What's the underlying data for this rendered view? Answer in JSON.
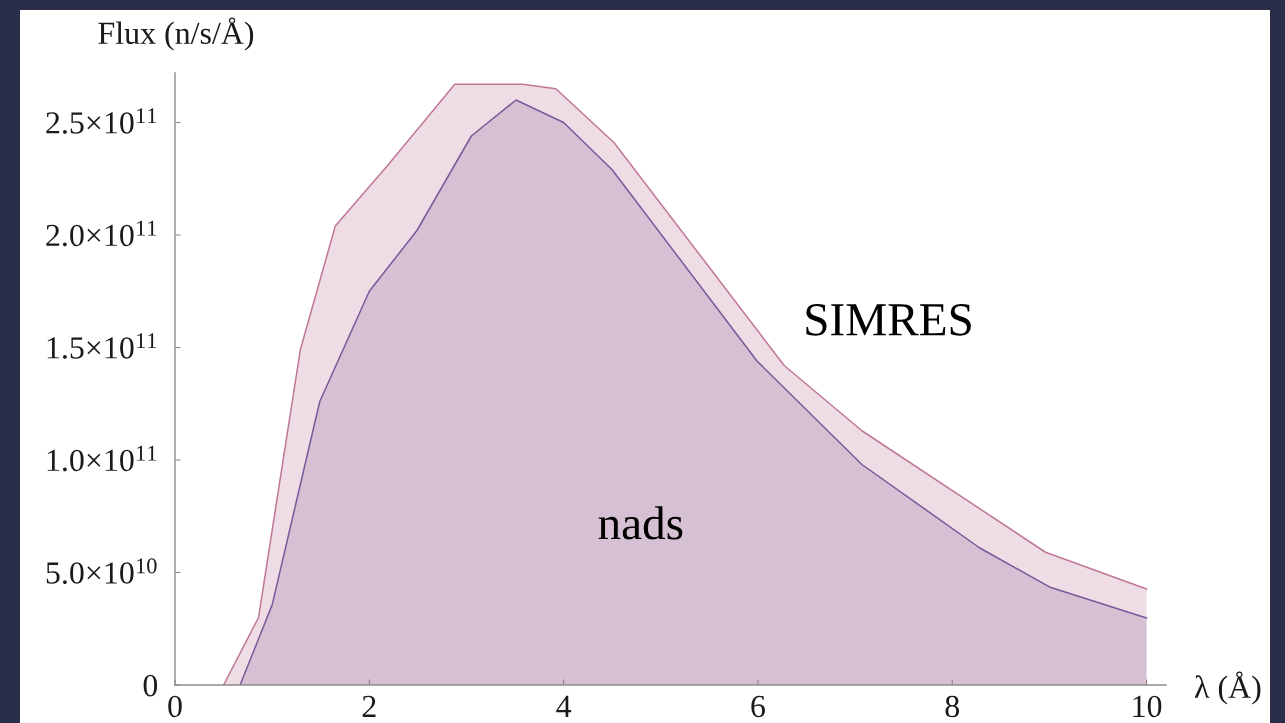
{
  "chart_data": {
    "type": "area",
    "xlabel": "λ (Å)",
    "ylabel": "Flux (n/s/Å)",
    "xlim": [
      0,
      10.2
    ],
    "ylim": [
      0,
      272000000000.0
    ],
    "xticks": [
      0,
      2,
      4,
      6,
      8,
      10
    ],
    "yticks": [
      0,
      {
        "value": 50000000000.0,
        "label": "5.0×10$^{10}$"
      },
      {
        "value": 100000000000.0,
        "label": "1.0×10$^{11}$"
      },
      {
        "value": 150000000000.0,
        "label": "1.5×10$^{11}$"
      },
      {
        "value": 200000000000.0,
        "label": "2.0×10$^{11}$"
      },
      {
        "value": 250000000000.0,
        "label": "2.5×10$^{11}$"
      }
    ],
    "series": [
      {
        "name": "SIMRES",
        "color": "#c07898",
        "x": [
          0.5,
          0.86,
          1.29,
          1.65,
          2.19,
          2.88,
          3.58,
          3.92,
          4.52,
          6.27,
          7.07,
          8.96,
          10.0
        ],
        "values": [
          0,
          30000000000.0,
          149000000000.0,
          204000000000.0,
          231000000000.0,
          267000000000.0,
          267000000000.0,
          265000000000.0,
          241000000000.0,
          142000000000.0,
          113000000000.0,
          59000000000.0,
          42700000000.0
        ]
      },
      {
        "name": "nads",
        "color": "#7a5a9a",
        "x": [
          0.67,
          1.0,
          1.49,
          2.0,
          2.49,
          3.05,
          3.51,
          4.0,
          4.5,
          5.99,
          7.07,
          8.28,
          9.0,
          10.0
        ],
        "values": [
          0,
          35600000000.0,
          126000000000.0,
          175000000000.0,
          202000000000.0,
          244000000000.0,
          260000000000.0,
          250000000000.0,
          229000000000.0,
          144000000000.0,
          98000000000.0,
          61000000000.0,
          43600000000.0,
          29800000000.0
        ]
      }
    ]
  }
}
